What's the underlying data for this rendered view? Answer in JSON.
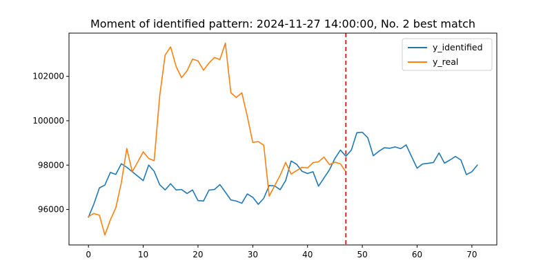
{
  "chart_data": {
    "type": "line",
    "title": "Moment of identified pattern: 2024-11-27 14:00:00, No. 2 best match",
    "xlabel": "",
    "ylabel": "",
    "xlim": [
      -3.55,
      74.55
    ],
    "ylim": [
      94400,
      103950
    ],
    "x_ticks": [
      0,
      10,
      20,
      30,
      40,
      50,
      60,
      70
    ],
    "x_tick_labels": [
      "0",
      "10",
      "20",
      "30",
      "40",
      "50",
      "60",
      "70"
    ],
    "y_ticks": [
      96000,
      98000,
      100000,
      102000
    ],
    "y_tick_labels": [
      "96000",
      "98000",
      "100000",
      "102000"
    ],
    "grid": false,
    "legend_position": "top-right",
    "vline": {
      "x": 47,
      "color": "#d62728",
      "style": "dashed"
    },
    "series": [
      {
        "name": "y_identified",
        "color": "#1f77b4",
        "x": [
          0,
          1,
          2,
          3,
          4,
          5,
          6,
          7,
          8,
          9,
          10,
          11,
          12,
          13,
          14,
          15,
          16,
          17,
          18,
          19,
          20,
          21,
          22,
          23,
          24,
          25,
          26,
          27,
          28,
          29,
          30,
          31,
          32,
          33,
          34,
          35,
          36,
          37,
          38,
          39,
          40,
          41,
          42,
          43,
          44,
          45,
          46,
          47,
          48,
          49,
          50,
          51,
          52,
          53,
          54,
          55,
          56,
          57,
          58,
          59,
          60,
          61,
          62,
          63,
          64,
          65,
          66,
          67,
          68,
          69,
          70,
          71
        ],
        "values": [
          95650,
          96250,
          96970,
          97100,
          97670,
          97580,
          98060,
          97900,
          97700,
          97500,
          97300,
          98000,
          97720,
          97120,
          96880,
          97160,
          96880,
          96900,
          96720,
          96880,
          96400,
          96380,
          96870,
          96900,
          97120,
          96780,
          96430,
          96380,
          96280,
          96700,
          96550,
          96230,
          96500,
          97080,
          97060,
          96890,
          97300,
          98180,
          98040,
          97720,
          97620,
          97700,
          97050,
          97420,
          97790,
          98300,
          98680,
          98400,
          98680,
          99460,
          99480,
          99230,
          98420,
          98620,
          98780,
          98760,
          98820,
          98740,
          98910,
          98380,
          97860,
          98050,
          98080,
          98120,
          98550,
          98090,
          98230,
          98390,
          98230,
          97570,
          97700,
          98000
        ]
      },
      {
        "name": "y_real",
        "color": "#ff7f0e",
        "x": [
          0,
          1,
          2,
          3,
          4,
          5,
          6,
          7,
          8,
          9,
          10,
          11,
          12,
          13,
          14,
          15,
          16,
          17,
          18,
          19,
          20,
          21,
          22,
          23,
          24,
          25,
          26,
          27,
          28,
          29,
          30,
          31,
          32,
          33,
          34,
          35,
          36,
          37,
          38,
          39,
          40,
          41,
          42,
          43,
          44,
          45,
          46,
          47
        ],
        "values": [
          95680,
          95820,
          95740,
          94850,
          95530,
          96080,
          97200,
          98750,
          97700,
          98140,
          98600,
          98300,
          98200,
          101100,
          102960,
          103330,
          102450,
          101940,
          102250,
          102780,
          102700,
          102280,
          102600,
          102850,
          102760,
          103500,
          101260,
          101050,
          101260,
          100200,
          99020,
          99060,
          98900,
          96600,
          97070,
          97540,
          98120,
          97600,
          97750,
          97900,
          97870,
          98110,
          98150,
          98360,
          98020,
          98130,
          98060,
          97690
        ]
      }
    ]
  }
}
